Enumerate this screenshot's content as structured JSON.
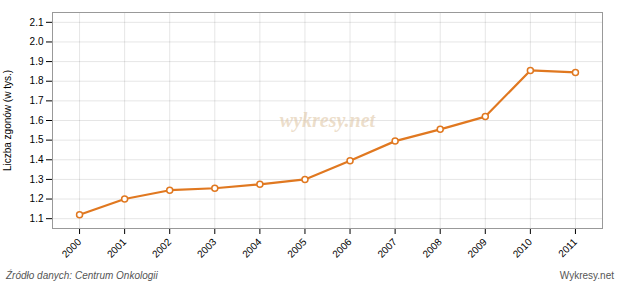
{
  "chart_data": {
    "type": "line",
    "x": [
      2000,
      2001,
      2002,
      2003,
      2004,
      2005,
      2006,
      2007,
      2008,
      2009,
      2010,
      2011
    ],
    "values": [
      1.12,
      1.2,
      1.245,
      1.255,
      1.275,
      1.3,
      1.395,
      1.495,
      1.555,
      1.62,
      1.855,
      1.845
    ],
    "color": "#E07820",
    "marker": "circle",
    "ylabel": "Liczba zgonów (w tys.)",
    "annotations": [
      "wykresy.net",
      "Źródło danych:  Centrum Onkologii",
      "Wykresy.net"
    ],
    "xlim": [
      1999.4,
      2011.6
    ],
    "xticks": [
      2000,
      2001,
      2002,
      2003,
      2004,
      2005,
      2006,
      2007,
      2008,
      2009,
      2010,
      2011
    ],
    "ylim": [
      1.05,
      2.15
    ],
    "yticks": [
      1.1,
      1.2,
      1.3,
      1.4,
      1.5,
      1.6,
      1.7,
      1.8,
      1.9,
      {
        "value": 2.0,
        "label": "2.0"
      },
      2.1
    ],
    "grid": true
  }
}
